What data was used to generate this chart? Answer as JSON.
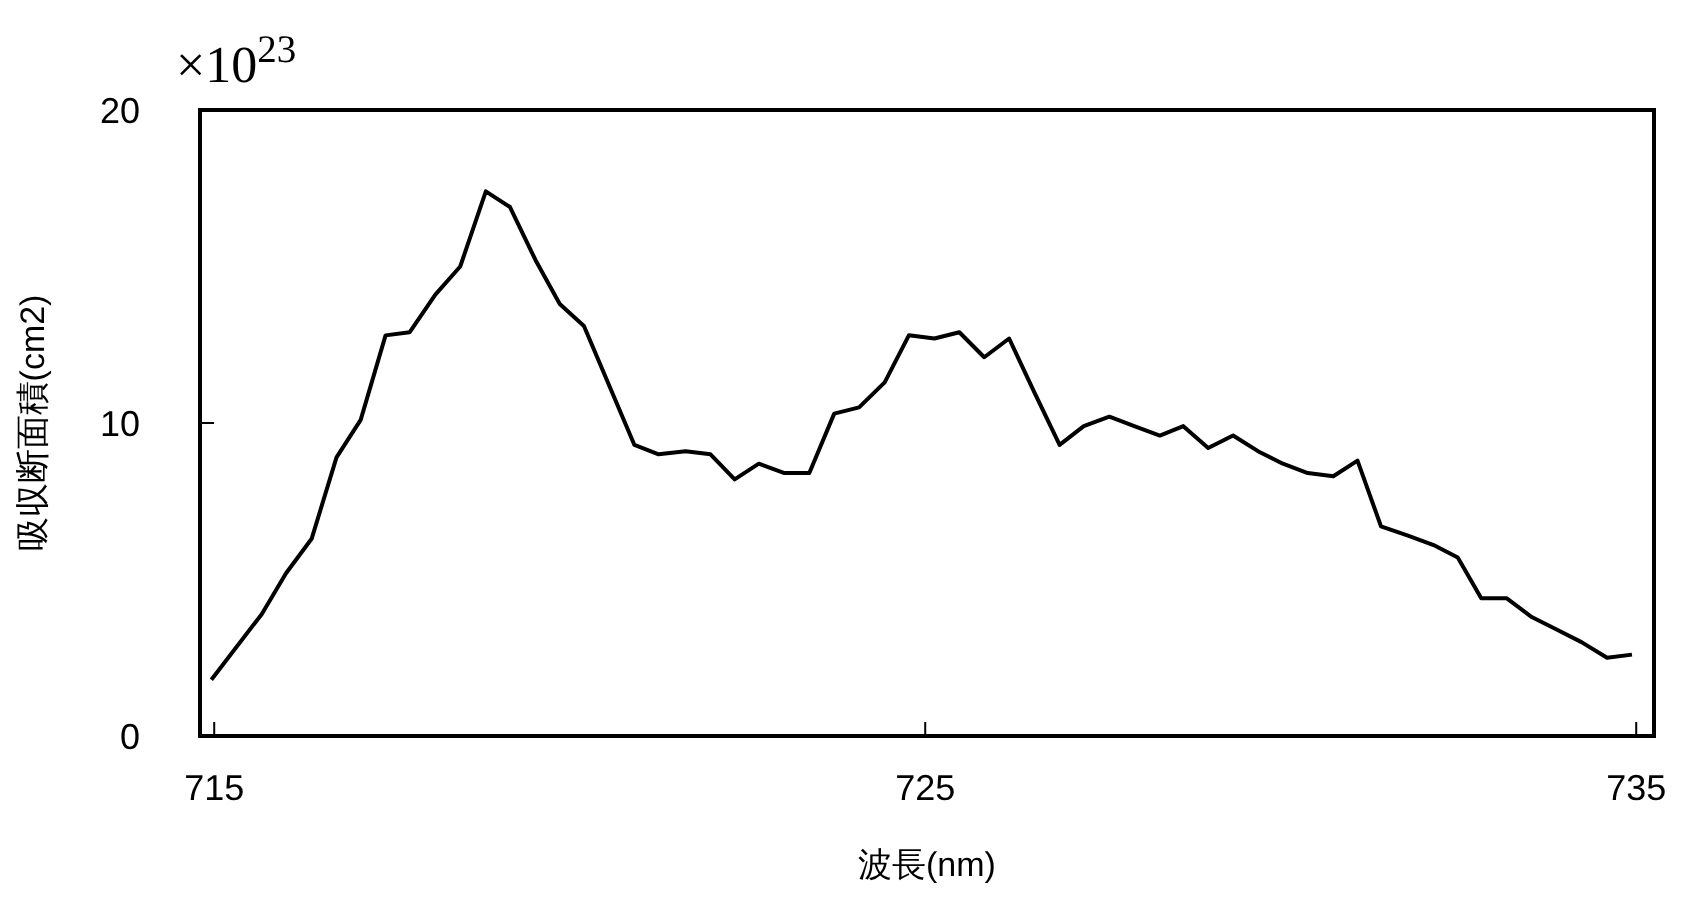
{
  "chart_data": {
    "type": "line",
    "xlabel": "波長(nm)",
    "ylabel": "吸収断面積(cm2)",
    "annotations": [
      "×10$^{23}$"
    ],
    "xlim": [
      714.8,
      735.25
    ],
    "xticks": [
      715,
      725,
      735
    ],
    "ylim": [
      0,
      20
    ],
    "yticks": [
      0,
      10,
      20
    ],
    "grid": false,
    "marker": "none",
    "line_style": "solid",
    "series": [
      {
        "color": "#000000",
        "x": [
          714.96,
          715.67,
          716.01,
          716.37,
          716.72,
          717.06,
          717.41,
          717.75,
          718.11,
          718.46,
          718.82,
          719.16,
          719.52,
          719.86,
          720.2,
          720.91,
          721.25,
          721.63,
          721.98,
          722.32,
          722.66,
          723.02,
          723.37,
          723.72,
          724.07,
          724.43,
          724.77,
          725.13,
          725.48,
          725.83,
          726.18,
          726.53,
          726.89,
          727.23,
          727.59,
          727.94,
          728.3,
          728.63,
          728.98,
          729.33,
          729.68,
          730.03,
          730.38,
          730.74,
          731.08,
          731.41,
          731.79,
          732.15,
          732.49,
          732.82,
          733.18,
          733.53,
          733.88,
          734.23,
          734.59,
          734.94
        ],
        "values": [
          1.8,
          3.9,
          5.2,
          6.3,
          8.9,
          10.1,
          12.8,
          12.9,
          14.1,
          15.0,
          17.4,
          16.9,
          15.2,
          13.8,
          13.1,
          9.3,
          9.0,
          9.1,
          9.0,
          8.2,
          8.7,
          8.4,
          8.4,
          10.3,
          10.5,
          11.3,
          12.8,
          12.7,
          12.9,
          12.1,
          12.7,
          11.0,
          9.3,
          9.9,
          10.2,
          9.9,
          9.6,
          9.9,
          9.2,
          9.6,
          9.1,
          8.7,
          8.4,
          8.3,
          8.8,
          6.7,
          6.4,
          6.1,
          5.7,
          4.4,
          4.4,
          3.8,
          3.4,
          3.0,
          2.5,
          2.6
        ]
      }
    ]
  }
}
